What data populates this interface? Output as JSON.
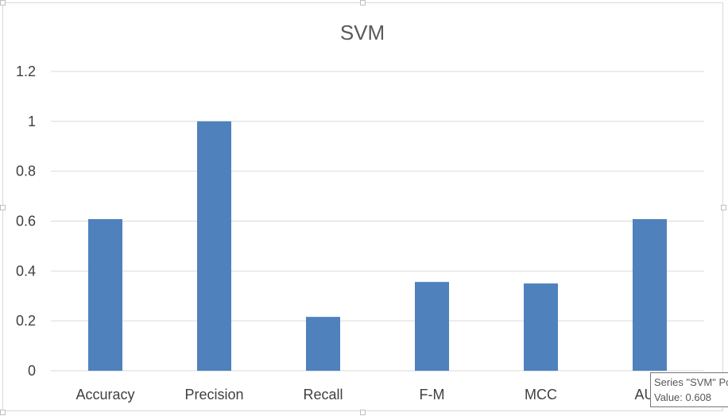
{
  "chart_data": {
    "type": "bar",
    "title": "SVM",
    "categories": [
      "Accuracy",
      "Precision",
      "Recall",
      "F-M",
      "MCC",
      "AUC"
    ],
    "series": [
      {
        "name": "SVM",
        "color": "#4f81bd",
        "values": [
          0.608,
          1.0,
          0.216,
          0.356,
          0.35,
          0.608
        ]
      }
    ],
    "ylim": [
      0,
      1.2
    ],
    "yticks": [
      "0",
      "0.2",
      "0.4",
      "0.6",
      "0.8",
      "1",
      "1.2"
    ],
    "ytick_values": [
      0,
      0.2,
      0.4,
      0.6,
      0.8,
      1.0,
      1.2
    ],
    "grid": true,
    "legend": "none"
  },
  "tooltip": {
    "line1": "Series \"SVM\" Point \"AUC\"",
    "line2": "Value: 0.608"
  }
}
